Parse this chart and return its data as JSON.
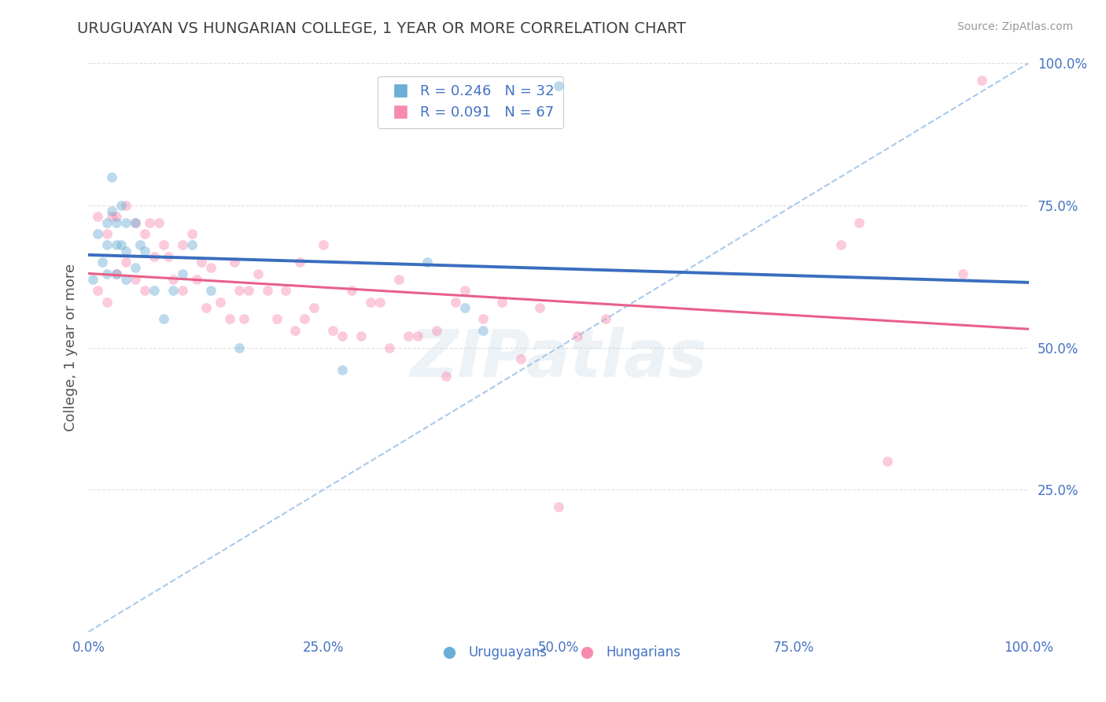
{
  "title": "URUGUAYAN VS HUNGARIAN COLLEGE, 1 YEAR OR MORE CORRELATION CHART",
  "source_text": "Source: ZipAtlas.com",
  "ylabel": "College, 1 year or more",
  "r_uruguayan": 0.246,
  "n_uruguayan": 32,
  "r_hungarian": 0.091,
  "n_hungarian": 67,
  "color_uruguayan": "#6baed6",
  "color_hungarian": "#f78ab0",
  "trend_color_uruguayan": "#3a6dbf",
  "trend_color_hungarian": "#e8608a",
  "dashed_line_color": "#a0c4e8",
  "background_color": "#ffffff",
  "grid_color": "#cccccc",
  "axis_label_color": "#4472c4",
  "title_color": "#404040",
  "uruguayan_x": [
    0.005,
    0.01,
    0.015,
    0.02,
    0.02,
    0.02,
    0.025,
    0.025,
    0.03,
    0.03,
    0.03,
    0.035,
    0.035,
    0.04,
    0.04,
    0.04,
    0.05,
    0.05,
    0.055,
    0.06,
    0.07,
    0.08,
    0.09,
    0.1,
    0.11,
    0.13,
    0.16,
    0.27,
    0.36,
    0.4,
    0.42,
    0.5
  ],
  "uruguayan_y": [
    0.62,
    0.7,
    0.65,
    0.72,
    0.68,
    0.63,
    0.8,
    0.74,
    0.72,
    0.68,
    0.63,
    0.75,
    0.68,
    0.72,
    0.67,
    0.62,
    0.72,
    0.64,
    0.68,
    0.67,
    0.6,
    0.55,
    0.6,
    0.63,
    0.68,
    0.6,
    0.5,
    0.46,
    0.65,
    0.57,
    0.53,
    0.96
  ],
  "hungarian_x": [
    0.01,
    0.01,
    0.02,
    0.02,
    0.025,
    0.03,
    0.03,
    0.04,
    0.04,
    0.05,
    0.05,
    0.06,
    0.06,
    0.065,
    0.07,
    0.075,
    0.08,
    0.085,
    0.09,
    0.1,
    0.1,
    0.11,
    0.115,
    0.12,
    0.125,
    0.13,
    0.14,
    0.15,
    0.155,
    0.16,
    0.165,
    0.17,
    0.18,
    0.19,
    0.2,
    0.21,
    0.22,
    0.225,
    0.23,
    0.24,
    0.25,
    0.26,
    0.27,
    0.28,
    0.29,
    0.3,
    0.31,
    0.32,
    0.33,
    0.34,
    0.35,
    0.37,
    0.38,
    0.39,
    0.4,
    0.42,
    0.44,
    0.46,
    0.48,
    0.5,
    0.52,
    0.55,
    0.8,
    0.82,
    0.85,
    0.93,
    0.95
  ],
  "hungarian_y": [
    0.73,
    0.6,
    0.7,
    0.58,
    0.73,
    0.73,
    0.63,
    0.75,
    0.65,
    0.72,
    0.62,
    0.7,
    0.6,
    0.72,
    0.66,
    0.72,
    0.68,
    0.66,
    0.62,
    0.68,
    0.6,
    0.7,
    0.62,
    0.65,
    0.57,
    0.64,
    0.58,
    0.55,
    0.65,
    0.6,
    0.55,
    0.6,
    0.63,
    0.6,
    0.55,
    0.6,
    0.53,
    0.65,
    0.55,
    0.57,
    0.68,
    0.53,
    0.52,
    0.6,
    0.52,
    0.58,
    0.58,
    0.5,
    0.62,
    0.52,
    0.52,
    0.53,
    0.45,
    0.58,
    0.6,
    0.55,
    0.58,
    0.48,
    0.57,
    0.22,
    0.52,
    0.55,
    0.68,
    0.72,
    0.3,
    0.63,
    0.97
  ],
  "xlim": [
    0.0,
    1.0
  ],
  "ylim": [
    0.0,
    1.0
  ],
  "xtick_labels": [
    "0.0%",
    "25.0%",
    "50.0%",
    "75.0%",
    "100.0%"
  ],
  "xtick_vals": [
    0.0,
    0.25,
    0.5,
    0.75,
    1.0
  ],
  "ytick_labels": [
    "100.0%",
    "75.0%",
    "50.0%",
    "25.0%"
  ],
  "ytick_vals": [
    1.0,
    0.75,
    0.5,
    0.25
  ],
  "grid_ytick_vals": [
    0.25,
    0.5,
    0.75,
    1.0
  ],
  "legend_labels": [
    "Uruguayans",
    "Hungarians"
  ],
  "watermark_text": "ZIPatlas",
  "marker_size": 85,
  "marker_alpha": 0.45,
  "legend_r_color": "#4472c4",
  "trend_lw_uruguayan": 2.8,
  "trend_lw_hungarian": 2.2
}
